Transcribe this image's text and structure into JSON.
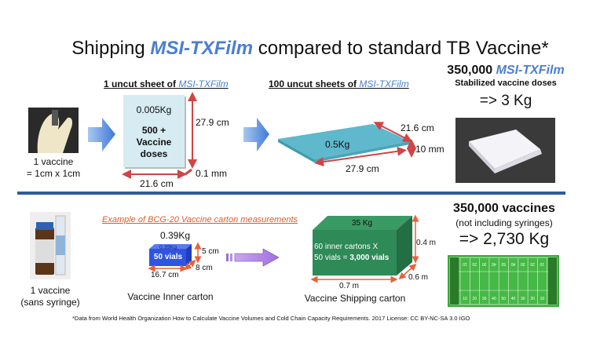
{
  "title": {
    "prefix": "Shipping ",
    "brand": "MSI-TXFilm",
    "suffix": " compared to standard TB Vaccine*"
  },
  "colors": {
    "brand": "#4a7fd0",
    "dimension_arrow": "#d04545",
    "divider": "#2e5b9a",
    "inner_carton": "#2f55e0",
    "shipping_carton": "#2e8a57",
    "sheet": "#d6ebf2",
    "stack": "#5fb8cc",
    "example_label": "#e05a2b"
  },
  "film": {
    "single_sheet_label": {
      "prefix": "1 uncut sheet of ",
      "brand": "MSI-TXFilm"
    },
    "stack_label": {
      "prefix": "100 uncut sheets of ",
      "brand": "MSI-TXFilm"
    },
    "vaccine_caption": [
      "1 vaccine",
      "= 1cm x 1cm"
    ],
    "sheet": {
      "weight": "0.005Kg",
      "doses": [
        "500 +",
        "Vaccine",
        "doses"
      ],
      "height": "27.9 cm",
      "thickness": "0.1 mm",
      "width": "21.6 cm"
    },
    "stack": {
      "weight": "0.5Kg",
      "width": "21.6 cm",
      "thickness": "10 mm",
      "length": "27.9 cm"
    },
    "summary": {
      "count": "350,000 ",
      "brand": "MSI-TXFilm",
      "subtitle": "Stabilized vaccine doses",
      "result": "=> 3 Kg"
    }
  },
  "standard": {
    "vaccine_caption": [
      "1 vaccine",
      "(sans syringe)"
    ],
    "example_label": "Example of BCG-20 Vaccine carton measurements",
    "inner_carton": {
      "weight": "0.39Kg",
      "top_label": "0.39Kg",
      "contents": "50 vials",
      "height": "5 cm",
      "depth": "8 cm",
      "width": "16.7 cm",
      "caption": "Vaccine Inner carton"
    },
    "shipping_carton": {
      "weight": "35 Kg",
      "contents_line1": "60 inner cartons X",
      "contents_line2_prefix": "50 vials = ",
      "contents_line2_bold": "3,000 vials",
      "height": "0.4 m",
      "depth": "0.6 m",
      "width": "0.7 m",
      "caption": "Vaccine Shipping carton"
    },
    "summary": {
      "title": "350,000 vaccines",
      "subtitle": "(not including syringes)",
      "result": "=> 2,730 Kg"
    },
    "field_numbers": [
      "10",
      "20",
      "30",
      "40",
      "50",
      "40",
      "30",
      "20",
      "10"
    ]
  },
  "footnote": "*Data  from World Health Organization How to Calculate Vaccine Volumes and Cold Chain Capacity Requirements.  2017 License: CC BY-NC-SA 3.0 IGO"
}
